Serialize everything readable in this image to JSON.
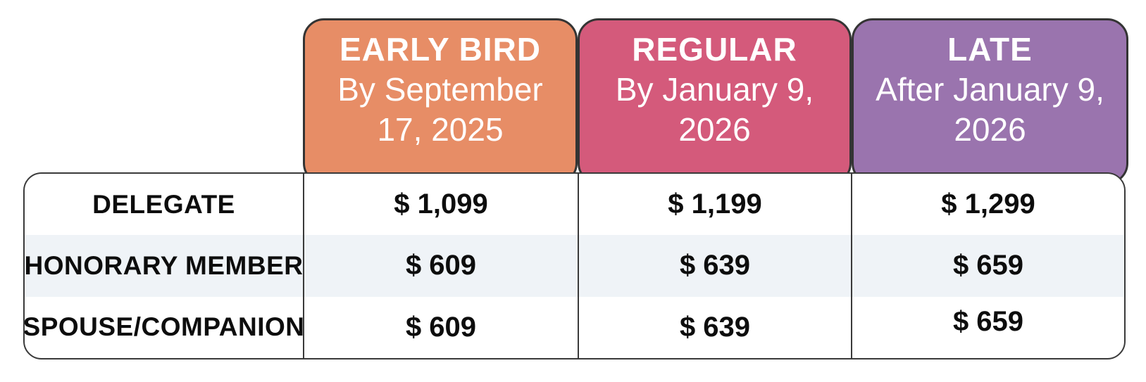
{
  "pricing_table": {
    "columns": [
      {
        "id": "early_bird",
        "title": "EARLY BIRD",
        "subtitle_line1": "By September",
        "subtitle_line2": "17, 2025",
        "header_color": "#E78D66"
      },
      {
        "id": "regular",
        "title": "REGULAR",
        "subtitle_line1": "By January 9,",
        "subtitle_line2": "2026",
        "header_color": "#D45A7B"
      },
      {
        "id": "late",
        "title": "LATE",
        "subtitle_line1": "After January 9,",
        "subtitle_line2": "2026",
        "header_color": "#9A74AE"
      }
    ],
    "rows": [
      {
        "label": "DELEGATE",
        "prices": [
          "$ 1,099",
          "$ 1,199",
          "$ 1,299"
        ]
      },
      {
        "label": "HONORARY MEMBER",
        "prices": [
          "$ 609",
          "$ 639",
          "$ 659"
        ]
      },
      {
        "label": "SPOUSE/COMPANION",
        "prices": [
          "$ 609",
          "$ 639",
          "$ 659"
        ]
      }
    ],
    "colors": {
      "early_bird_header": "#E78D66",
      "regular_header": "#D45A7B",
      "late_header": "#9A74AE",
      "stripe_row": "#EFF3F7",
      "border": "#3a3a3a",
      "header_text": "#ffffff",
      "body_text": "#0d0d0d"
    }
  },
  "chart_data": {
    "type": "table",
    "title": "Registration pricing",
    "column_headers": [
      "EARLY BIRD By September 17, 2025",
      "REGULAR By January 9, 2026",
      "LATE After January 9, 2026"
    ],
    "row_headers": [
      "DELEGATE",
      "HONORARY MEMBER",
      "SPOUSE/COMPANION"
    ],
    "values_usd": [
      [
        1099,
        1199,
        1299
      ],
      [
        609,
        639,
        659
      ],
      [
        609,
        639,
        659
      ]
    ],
    "currency": "USD",
    "layout": "striped rows, colored rounded header tabs"
  }
}
